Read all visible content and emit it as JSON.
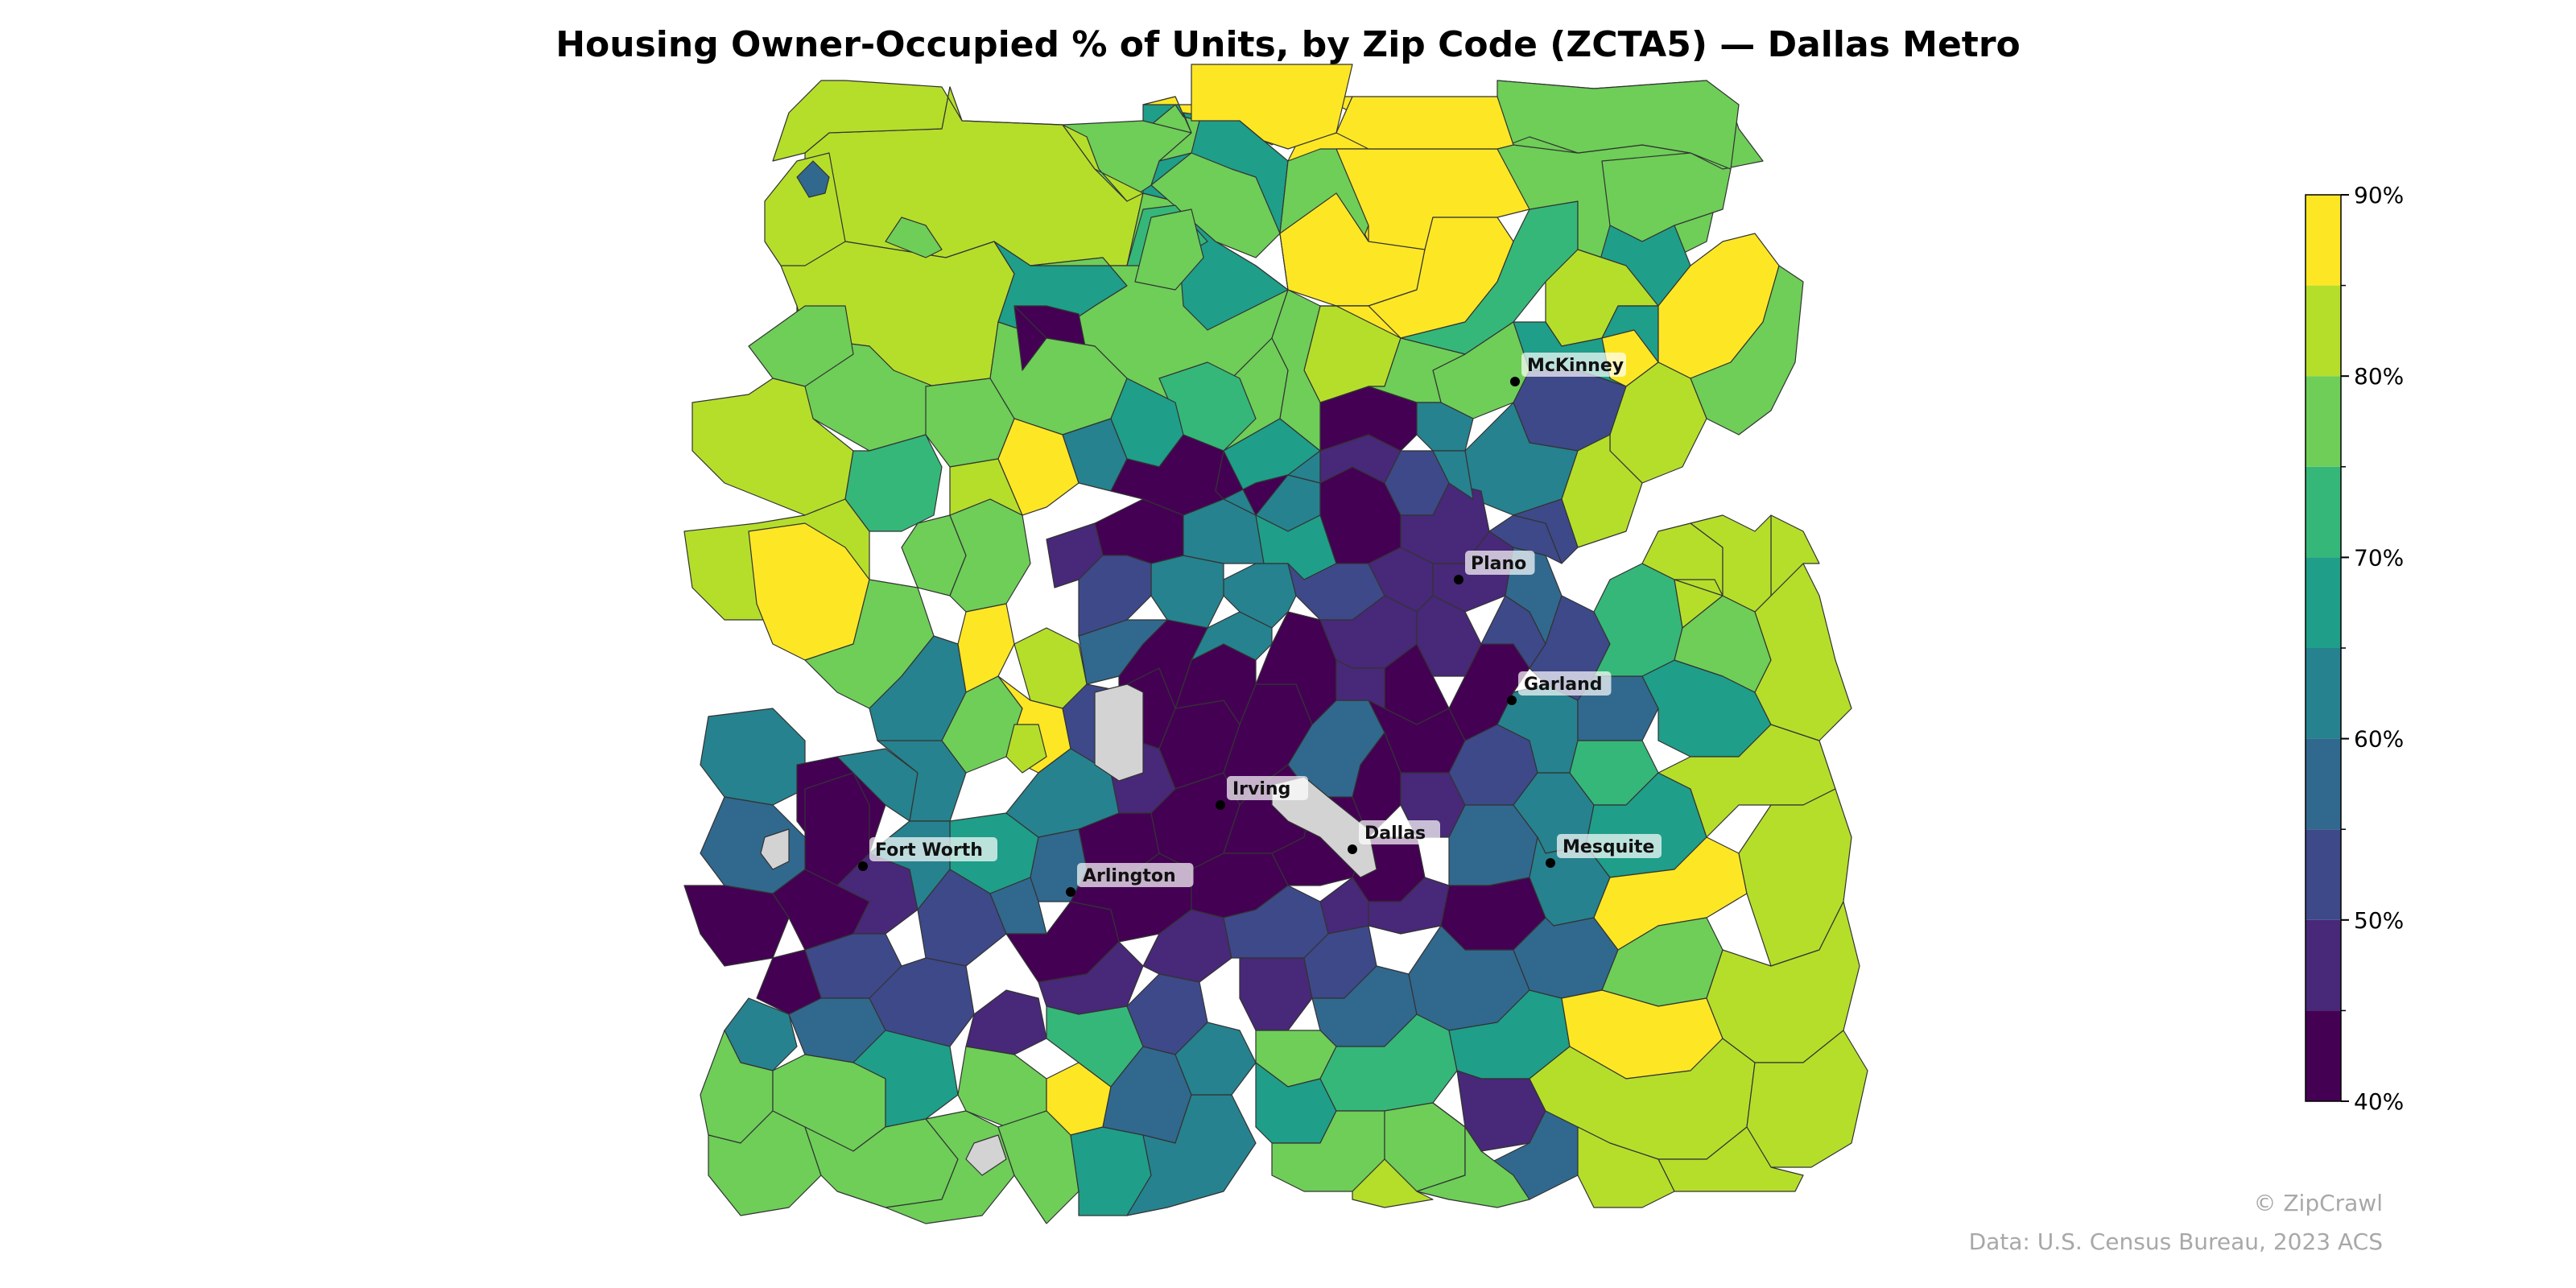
{
  "title": "Housing Owner-Occupied % of Units, by Zip Code (ZCTA5) — Dallas Metro",
  "watermark": "© ZipCrawl",
  "source": "Data: U.S. Census Bureau, 2023 ACS",
  "legend": {
    "bins": [
      {
        "from": 40,
        "to": 45,
        "color": "#440154"
      },
      {
        "from": 45,
        "to": 50,
        "color": "#482878"
      },
      {
        "from": 50,
        "to": 55,
        "color": "#3e4989"
      },
      {
        "from": 55,
        "to": 60,
        "color": "#31688e"
      },
      {
        "from": 60,
        "to": 65,
        "color": "#26828e"
      },
      {
        "from": 65,
        "to": 70,
        "color": "#1f9e89"
      },
      {
        "from": 70,
        "to": 75,
        "color": "#35b779"
      },
      {
        "from": 75,
        "to": 80,
        "color": "#6ece58"
      },
      {
        "from": 80,
        "to": 85,
        "color": "#b5de2b"
      },
      {
        "from": 85,
        "to": 90,
        "color": "#fde725"
      }
    ],
    "tick_labels": [
      "40%",
      "50%",
      "60%",
      "70%",
      "80%",
      "90%"
    ],
    "no_data_color": "#d3d3d3"
  },
  "cities": [
    {
      "name": "McKinney"
    },
    {
      "name": "Plano"
    },
    {
      "name": "Garland"
    },
    {
      "name": "Irving"
    },
    {
      "name": "Dallas"
    },
    {
      "name": "Mesquite"
    },
    {
      "name": "Fort Worth"
    },
    {
      "name": "Arlington"
    }
  ]
}
